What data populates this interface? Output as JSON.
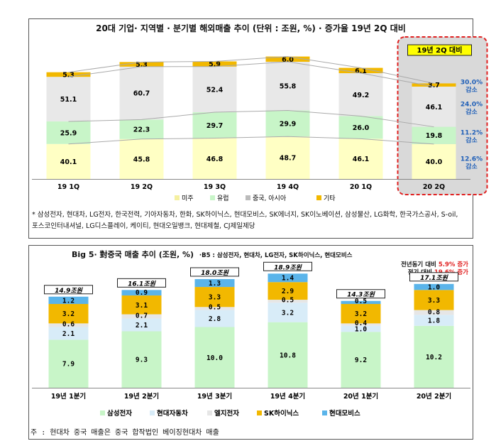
{
  "chart_data": [
    {
      "type": "bar",
      "title": "20대 기업· 지역별 · 분기별 해외매출 추이 (단위 : 조원, %) · 증가율 19년 2Q 대비",
      "categories": [
        "19 1Q",
        "19 2Q",
        "19 3Q",
        "19 4Q",
        "20 1Q",
        "20 2Q"
      ],
      "series": [
        {
          "name": "미주",
          "values": [
            40.1,
            45.8,
            46.8,
            48.7,
            46.1,
            40.0
          ]
        },
        {
          "name": "유럽",
          "values": [
            25.9,
            22.3,
            29.7,
            29.9,
            26.0,
            19.8
          ]
        },
        {
          "name": "중국, 아시아",
          "values": [
            51.1,
            60.7,
            52.4,
            55.8,
            49.2,
            46.1
          ]
        },
        {
          "name": "기타",
          "values": [
            5.3,
            5.3,
            5.9,
            6.0,
            6.1,
            3.7
          ]
        }
      ],
      "highlight_label": "19년 2Q 대비",
      "annotations": [
        {
          "series": "기타",
          "rate": "30.0%",
          "text": "감소"
        },
        {
          "series": "중국, 아시아",
          "rate": "24.0%",
          "text": "감소"
        },
        {
          "series": "유럽",
          "rate": "11.2%",
          "text": "감소"
        },
        {
          "series": "미주",
          "rate": "12.6%",
          "text": "감소"
        }
      ],
      "colors": [
        "#ffffc4",
        "#c8f5c8",
        "#e8e8e8",
        "#f2b800"
      ],
      "ylim": [
        0,
        145
      ],
      "legend": "bottom",
      "note": "* 삼성전자, 현대차, LG전자, 한국전력, 기아자동차, 한화, SK하이닉스, 현대모비스, SK에너지, SK이노베이션, 삼성물산, LG화학, 한국가스공사, S-oil, 포스코인터내셔널, LG디스플레이, 케이티, 현대오일뱅크, 현대제철, CJ제일제당"
    },
    {
      "type": "bar",
      "title": "Big 5· 對중국 매출 추이 (조원, %)",
      "subtitle": "·B5 : 삼성전자, 현대차, LG전자, SK하이닉스, 현대모비스",
      "categories": [
        "19년 1분기",
        "19년 2분기",
        "19년 3분기",
        "19년 4분기",
        "20년 1분기",
        "20년 2분기"
      ],
      "totals": [
        "14.9조원",
        "16.1조원",
        "18.0조원",
        "18.9조원",
        "14.3조원",
        "17.1조원"
      ],
      "series": [
        {
          "name": "삼성전자",
          "values": [
            7.9,
            9.3,
            10.0,
            10.8,
            9.2,
            10.2
          ]
        },
        {
          "name": "현대자동차",
          "values": [
            2.1,
            2.1,
            2.8,
            3.2,
            1.0,
            1.8
          ]
        },
        {
          "name": "엘지전자",
          "values": [
            0.6,
            0.7,
            0.5,
            0.5,
            0.4,
            0.8
          ]
        },
        {
          "name": "SK하이닉스",
          "values": [
            3.2,
            3.1,
            3.3,
            2.9,
            3.2,
            3.3
          ]
        },
        {
          "name": "현대모비스",
          "values": [
            1.2,
            0.9,
            1.3,
            1.4,
            0.5,
            1.0
          ]
        }
      ],
      "colors": [
        "#c8f5c8",
        "#d8ecf8",
        "#e6e6e6",
        "#f2b800",
        "#5ab4ea"
      ],
      "ylim": [
        0,
        20
      ],
      "legend": "bottom",
      "highlights": [
        {
          "label": "전년동기 대비",
          "value": "5.9% 증가"
        },
        {
          "label": "전기 대비",
          "value": "19.6% 증가"
        }
      ],
      "note": "주 : 현대차 중국 매출은 중국 합작법인 베이징현대차 매출"
    }
  ]
}
